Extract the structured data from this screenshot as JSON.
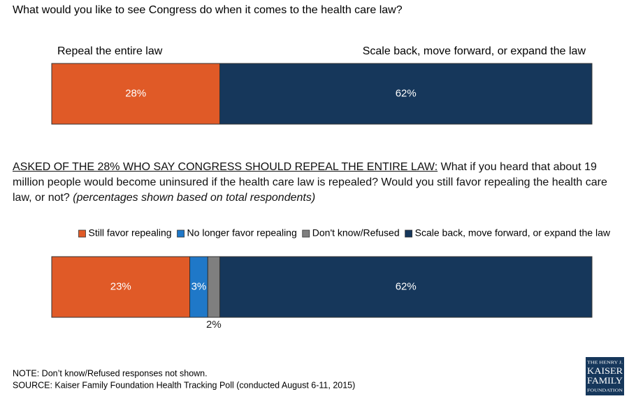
{
  "chart_data": [
    {
      "type": "stacked-bar",
      "title": "What would you like to see Congress do when it comes to the health care law?",
      "legend": false,
      "series": [
        {
          "name": "Repeal the entire law",
          "color": "#e05a27",
          "values": [
            28
          ],
          "value_labels": [
            "28%"
          ]
        },
        {
          "name": "Scale back, move forward, or expand the law",
          "color": "#16375b",
          "values": [
            62
          ],
          "value_labels": [
            "62%"
          ]
        }
      ]
    },
    {
      "type": "stacked-bar",
      "title_prefix": "ASKED OF THE 28% WHO SAY CONGRESS SHOULD REPEAL THE ENTIRE LAW:",
      "title": "What if you heard that about 19 million people would become uninsured if the health care law is repealed?  Would you still favor repealing the health care law, or not?",
      "subtitle": "(percentages shown based on total respondents)",
      "legend": "top-right",
      "series": [
        {
          "name": "Still favor repealing",
          "color": "#e05a27",
          "values": [
            23
          ],
          "value_labels": [
            "23%"
          ]
        },
        {
          "name": "No longer favor repealing",
          "color": "#1f78c8",
          "values": [
            3
          ],
          "value_labels": [
            "3%"
          ]
        },
        {
          "name": "Don't know/Refused",
          "color": "#7f7f7f",
          "values": [
            2
          ],
          "value_labels": [
            "2%"
          ]
        },
        {
          "name": "Scale back, move forward, or expand the law",
          "color": "#16375b",
          "values": [
            62
          ],
          "value_labels": [
            "62%"
          ]
        }
      ]
    }
  ],
  "footer": {
    "note": "NOTE: Don’t know/Refused responses not shown.",
    "source": "SOURCE: Kaiser Family Foundation Health Tracking Poll (conducted August 6-11, 2015)"
  },
  "logo": {
    "lines": [
      "THE HENRY J.",
      "KAISER",
      "FAMILY",
      "FOUNDATION"
    ]
  }
}
